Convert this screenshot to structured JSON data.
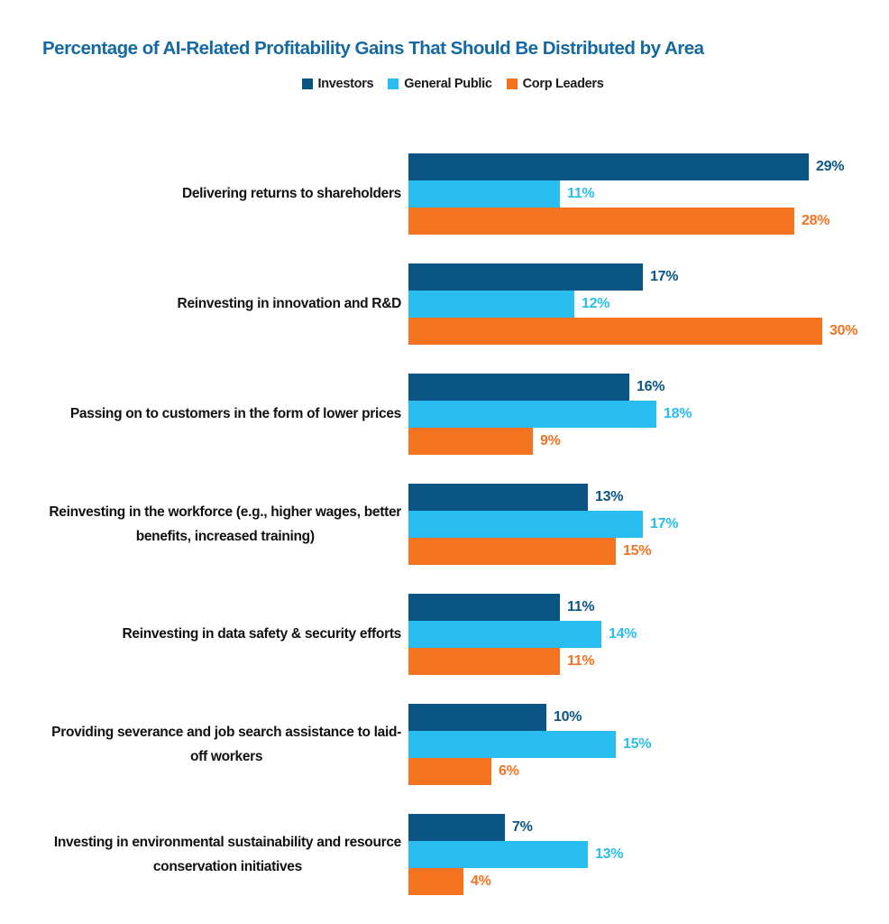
{
  "title": "Percentage of AI-Related Profitability Gains That Should Be Distributed by Area",
  "colors": {
    "title": "#1569A2",
    "background": "#FFFFFF",
    "legend_text": "#1A1A1A",
    "category_text": "#111111"
  },
  "chart_data": {
    "type": "bar",
    "orientation": "horizontal",
    "title": "Percentage of AI-Related Profitability Gains That Should Be Distributed by Area",
    "unit": "%",
    "xlim": [
      0,
      32
    ],
    "grid": false,
    "legend_position": "top-center",
    "value_label_format": "{v}%",
    "categories": [
      "Delivering returns to shareholders",
      "Reinvesting in innovation and R&D",
      "Passing on to customers in the form of lower prices",
      "Reinvesting in the workforce (e.g., higher wages, better\nbenefits, increased training)",
      "Reinvesting in data safety & security efforts",
      "Providing severance and job search assistance to laid-\noff workers",
      "Investing in environmental sustainability and resource\nconservation initiatives"
    ],
    "series": [
      {
        "name": "Investors",
        "color": "#0B5585",
        "values": [
          29,
          17,
          16,
          13,
          11,
          10,
          7
        ]
      },
      {
        "name": "General Public",
        "color": "#29BDEF",
        "values": [
          11,
          12,
          18,
          17,
          14,
          15,
          13
        ]
      },
      {
        "name": "Corp Leaders",
        "color": "#F37321",
        "values": [
          28,
          30,
          9,
          15,
          11,
          6,
          4
        ]
      }
    ]
  }
}
